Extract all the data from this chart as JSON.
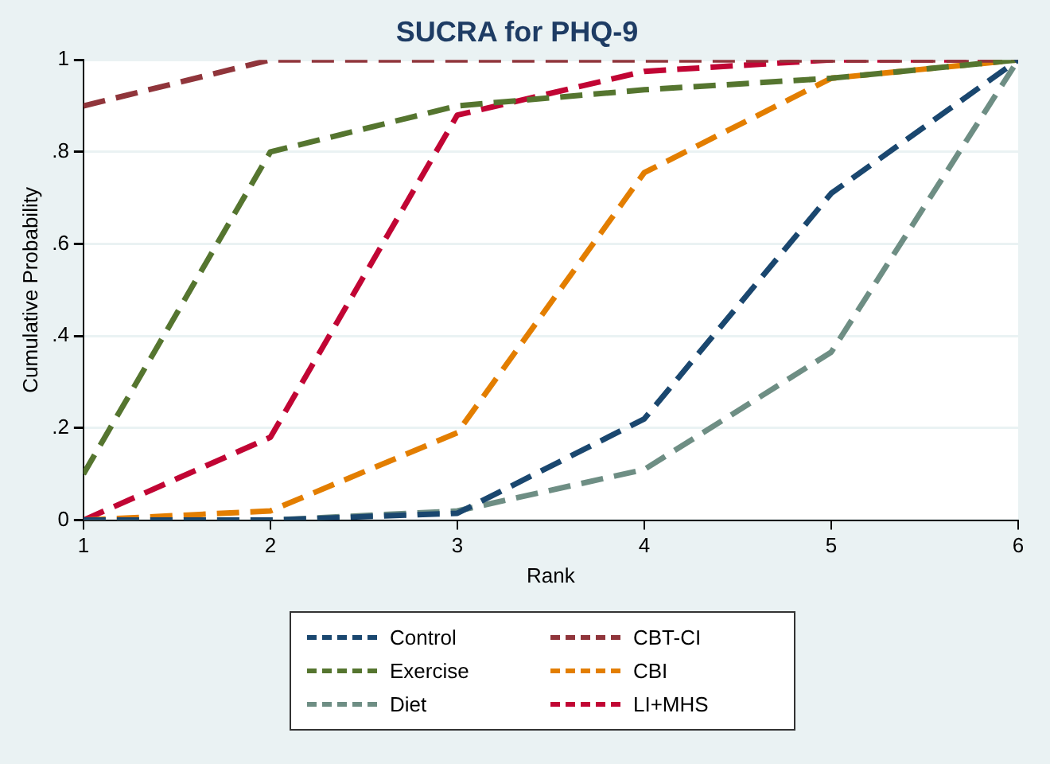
{
  "chart_data": {
    "type": "line",
    "title": "SUCRA for PHQ-9",
    "xlabel": "Rank",
    "ylabel": "Cumulative Probability",
    "x": [
      1,
      2,
      3,
      4,
      5,
      6
    ],
    "series": [
      {
        "name": "Control",
        "color": "#1a476f",
        "values": [
          0,
          0,
          0.015,
          0.22,
          0.71,
          1
        ]
      },
      {
        "name": "Exercise",
        "color": "#55752f",
        "values": [
          0.1,
          0.8,
          0.9,
          0.935,
          0.96,
          1
        ]
      },
      {
        "name": "Diet",
        "color": "#6e8e84",
        "values": [
          0,
          0,
          0.02,
          0.11,
          0.365,
          1
        ]
      },
      {
        "name": "CBT-CI",
        "color": "#90353b",
        "values": [
          0.9,
          1,
          1,
          1,
          1,
          1
        ]
      },
      {
        "name": "CBI",
        "color": "#e37e00",
        "values": [
          0,
          0.02,
          0.19,
          0.755,
          0.96,
          1
        ]
      },
      {
        "name": "LI+MHS",
        "color": "#c10534",
        "values": [
          0,
          0.18,
          0.88,
          0.975,
          1,
          1
        ]
      }
    ],
    "xlim": [
      1,
      6
    ],
    "xticks": [
      1,
      2,
      3,
      4,
      5,
      6
    ],
    "ylim": [
      0,
      1
    ],
    "yticks": [
      0,
      {
        "value": 0.2,
        "label": ".2"
      },
      {
        "value": 0.4,
        "label": ".4"
      },
      {
        "value": 0.6,
        "label": ".6"
      },
      {
        "value": 0.8,
        "label": ".8"
      },
      1
    ],
    "grid": "y",
    "legend": "bottom",
    "marker": "none",
    "line_style": "dashed"
  }
}
